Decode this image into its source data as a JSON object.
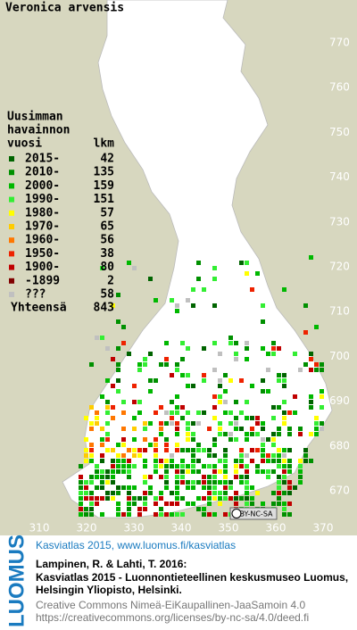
{
  "header": {
    "title": "Veronica arvensis"
  },
  "legend": {
    "heading": [
      "Uusimman",
      "havainnon",
      "vuosi"
    ],
    "count_heading": "lkm",
    "rows": [
      {
        "label": "2015-",
        "count": 42,
        "color": "#006400"
      },
      {
        "label": "2010-",
        "count": 135,
        "color": "#009000"
      },
      {
        "label": "2000-",
        "count": 159,
        "color": "#00b800"
      },
      {
        "label": "1990-",
        "count": 151,
        "color": "#33ee33"
      },
      {
        "label": "1980-",
        "count": 57,
        "color": "#ffff00"
      },
      {
        "label": "1970-",
        "count": 65,
        "color": "#ffcc00"
      },
      {
        "label": "1960-",
        "count": 56,
        "color": "#ff7700"
      },
      {
        "label": "1950-",
        "count": 38,
        "color": "#ee2200"
      },
      {
        "label": "1900-",
        "count": 80,
        "color": "#c00000"
      },
      {
        "label": "-1899",
        "count": 2,
        "color": "#800000"
      },
      {
        "label": "???",
        "count": 58,
        "color": "#c0c0c0"
      }
    ],
    "total_label": "Yhteensä",
    "total": 843
  },
  "map": {
    "x_ticks": [
      310,
      320,
      330,
      340,
      350,
      360,
      370
    ],
    "y_ticks": [
      670,
      680,
      690,
      700,
      710,
      720,
      730,
      740,
      750,
      760,
      770
    ],
    "license_badge": "BY-NC-SA"
  },
  "footer": {
    "brand": "LUOMUS",
    "link": "Kasviatlas 2015, www.luomus.fi/kasviatlas",
    "citation": [
      "Lampinen, R. & Lahti, T. 2016:",
      "Kasviatlas 2015 - Luonnontieteellinen keskusmuseo Luomus,",
      "Helsingin Yliopisto, Helsinki."
    ],
    "license": [
      "Creative Commons Nimeä-EiKaupallinen-JaaSamoin 4.0",
      "https://creativecommons.org/licenses/by-nc-sa/4.0/deed.fi"
    ]
  }
}
